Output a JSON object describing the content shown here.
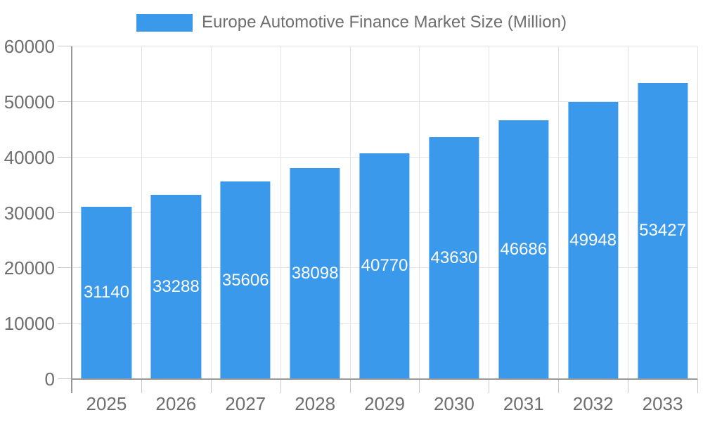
{
  "legend": {
    "label": "Europe Automotive Finance Market Size (Million)"
  },
  "chart_data": {
    "type": "bar",
    "title": "Europe Automotive Finance Market Size (Million)",
    "categories": [
      "2025",
      "2026",
      "2027",
      "2028",
      "2029",
      "2030",
      "2031",
      "2032",
      "2033"
    ],
    "values": [
      31140,
      33288,
      35606,
      38098,
      40770,
      43630,
      46686,
      49948,
      53427
    ],
    "xlabel": "",
    "ylabel": "",
    "ylim": [
      0,
      60000
    ],
    "yticks": [
      0,
      10000,
      20000,
      30000,
      40000,
      50000,
      60000
    ],
    "bar_labels": [
      "31140",
      "33288",
      "35606",
      "38098",
      "40770",
      "43630",
      "46686",
      "49948",
      "53427"
    ],
    "bar_label_position": "inside-center",
    "legend_position": "top-center",
    "grid": true,
    "colors": {
      "bar": "#3B99EC",
      "bar_label_text": "#ffffff",
      "axis_line": "#999999",
      "grid_line": "#e3e3e3",
      "tick_line": "#c8c8c8",
      "axis_text": "#6e6e6e",
      "legend_text": "#6e6e6e",
      "background": "#ffffff"
    }
  }
}
